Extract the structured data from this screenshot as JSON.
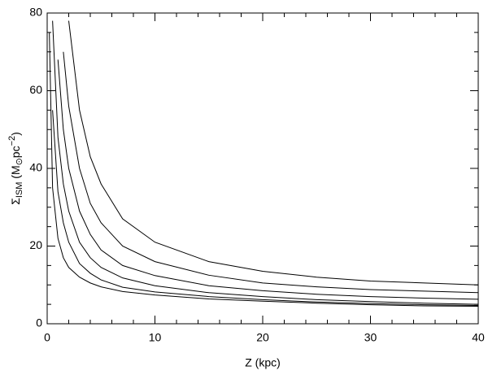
{
  "chart_data": {
    "type": "line",
    "xlabel": "Z (kpc)",
    "ylabel_parts": [
      "Σ",
      "ISM",
      " (M",
      "⊙",
      "pc",
      "−2",
      ")"
    ],
    "x": [
      0.2,
      0.5,
      1,
      1.5,
      2,
      3,
      4,
      5,
      7,
      10,
      15,
      20,
      25,
      30,
      35,
      40
    ],
    "series": [
      {
        "color": "#000000",
        "values": [
          null,
          null,
          null,
          null,
          78,
          55,
          43,
          36,
          27,
          21,
          16,
          13.5,
          12,
          11,
          10.5,
          10
        ]
      },
      {
        "color": "#000000",
        "values": [
          null,
          null,
          null,
          70,
          56,
          40,
          31,
          26,
          20,
          16,
          12.5,
          10.5,
          9.5,
          8.8,
          8.4,
          8
        ]
      },
      {
        "color": "#000000",
        "values": [
          null,
          null,
          68,
          50,
          40,
          29,
          23,
          19,
          15,
          12.4,
          9.8,
          8.5,
          7.6,
          7,
          6.6,
          6.3
        ]
      },
      {
        "color": "#000000",
        "values": [
          null,
          78,
          48,
          36,
          29,
          21,
          17,
          14.5,
          11.8,
          9.8,
          8,
          7,
          6.2,
          5.7,
          5.3,
          5
        ]
      },
      {
        "color": "#000000",
        "values": [
          null,
          55,
          34,
          26,
          21,
          15.5,
          13,
          11.3,
          9.4,
          8.2,
          7,
          6.2,
          5.6,
          5.2,
          4.9,
          4.7
        ]
      },
      {
        "color": "#000000",
        "values": [
          75,
          35,
          22,
          17,
          14.5,
          12,
          10.5,
          9.5,
          8.3,
          7.4,
          6.4,
          5.8,
          5.3,
          4.9,
          4.6,
          4.5
        ]
      }
    ],
    "xlim": [
      0,
      40
    ],
    "xticks": [
      0,
      10,
      20,
      30,
      40
    ],
    "ylim": [
      0,
      80
    ],
    "yticks": [
      0,
      20,
      40,
      60,
      80
    ],
    "grid": false
  }
}
